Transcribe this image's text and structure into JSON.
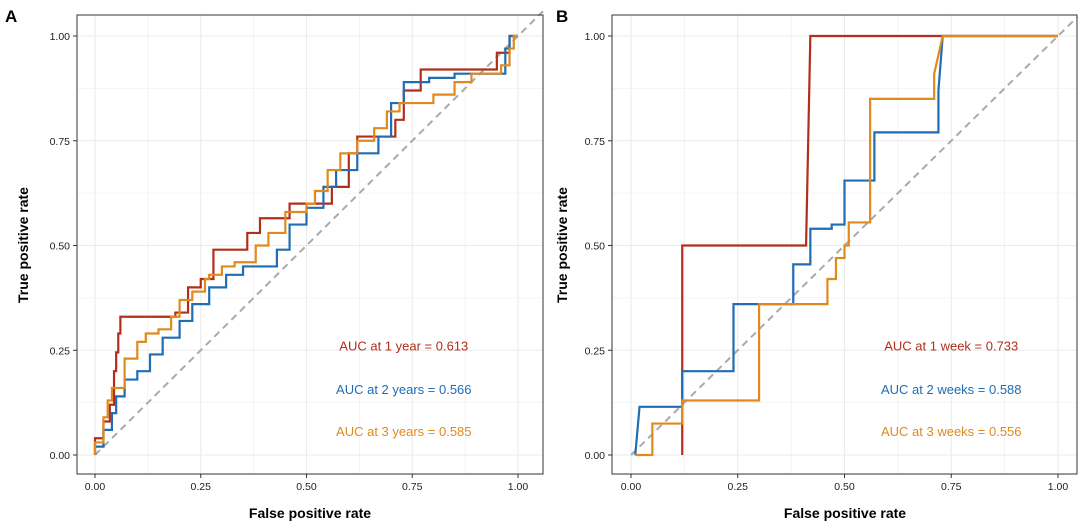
{
  "figure": {
    "colors": {
      "red": "#B22E1C",
      "blue": "#1F6DB3",
      "orange": "#E08A1E",
      "diagonal": "#AAAAAA",
      "grid": "#EBEBEB",
      "border": "#333333"
    }
  },
  "chart_data": [
    {
      "panel": "A",
      "type": "line",
      "xlabel": "False positive rate",
      "ylabel": "True positive rate",
      "xlim": [
        0,
        1
      ],
      "ylim": [
        0,
        1
      ],
      "xticks": [
        "0.00",
        "0.25",
        "0.50",
        "0.75",
        "1.00"
      ],
      "yticks": [
        "0.00",
        "0.25",
        "0.50",
        "0.75",
        "1.00"
      ],
      "grid": true,
      "reference_line": "diagonal",
      "series": [
        {
          "name": "AUC at 1 year = 0.613",
          "color": "#B22E1C",
          "points": [
            [
              0,
              0
            ],
            [
              0,
              0.04
            ],
            [
              0.02,
              0.04
            ],
            [
              0.02,
              0.08
            ],
            [
              0.035,
              0.08
            ],
            [
              0.035,
              0.12
            ],
            [
              0.045,
              0.12
            ],
            [
              0.045,
              0.2
            ],
            [
              0.05,
              0.2
            ],
            [
              0.05,
              0.245
            ],
            [
              0.055,
              0.245
            ],
            [
              0.055,
              0.29
            ],
            [
              0.06,
              0.29
            ],
            [
              0.06,
              0.33
            ],
            [
              0.19,
              0.33
            ],
            [
              0.19,
              0.34
            ],
            [
              0.22,
              0.34
            ],
            [
              0.22,
              0.4
            ],
            [
              0.25,
              0.4
            ],
            [
              0.25,
              0.42
            ],
            [
              0.28,
              0.42
            ],
            [
              0.28,
              0.49
            ],
            [
              0.36,
              0.49
            ],
            [
              0.36,
              0.53
            ],
            [
              0.39,
              0.53
            ],
            [
              0.39,
              0.565
            ],
            [
              0.46,
              0.565
            ],
            [
              0.46,
              0.6
            ],
            [
              0.56,
              0.6
            ],
            [
              0.56,
              0.64
            ],
            [
              0.6,
              0.64
            ],
            [
              0.6,
              0.72
            ],
            [
              0.62,
              0.72
            ],
            [
              0.62,
              0.76
            ],
            [
              0.71,
              0.76
            ],
            [
              0.71,
              0.8
            ],
            [
              0.73,
              0.8
            ],
            [
              0.73,
              0.87
            ],
            [
              0.77,
              0.87
            ],
            [
              0.77,
              0.92
            ],
            [
              0.95,
              0.92
            ],
            [
              0.95,
              0.96
            ],
            [
              0.98,
              0.96
            ],
            [
              0.98,
              1
            ],
            [
              1,
              1
            ]
          ]
        },
        {
          "name": "AUC at 2 years = 0.566",
          "color": "#1F6DB3",
          "points": [
            [
              0,
              0
            ],
            [
              0,
              0.02
            ],
            [
              0.02,
              0.02
            ],
            [
              0.02,
              0.06
            ],
            [
              0.04,
              0.06
            ],
            [
              0.04,
              0.1
            ],
            [
              0.05,
              0.1
            ],
            [
              0.05,
              0.14
            ],
            [
              0.07,
              0.14
            ],
            [
              0.07,
              0.18
            ],
            [
              0.1,
              0.18
            ],
            [
              0.1,
              0.2
            ],
            [
              0.13,
              0.2
            ],
            [
              0.13,
              0.24
            ],
            [
              0.16,
              0.24
            ],
            [
              0.16,
              0.28
            ],
            [
              0.2,
              0.28
            ],
            [
              0.2,
              0.32
            ],
            [
              0.23,
              0.32
            ],
            [
              0.23,
              0.36
            ],
            [
              0.27,
              0.36
            ],
            [
              0.27,
              0.4
            ],
            [
              0.31,
              0.4
            ],
            [
              0.31,
              0.43
            ],
            [
              0.35,
              0.43
            ],
            [
              0.35,
              0.45
            ],
            [
              0.43,
              0.45
            ],
            [
              0.43,
              0.49
            ],
            [
              0.46,
              0.49
            ],
            [
              0.46,
              0.55
            ],
            [
              0.5,
              0.55
            ],
            [
              0.5,
              0.59
            ],
            [
              0.54,
              0.59
            ],
            [
              0.54,
              0.64
            ],
            [
              0.57,
              0.64
            ],
            [
              0.57,
              0.68
            ],
            [
              0.62,
              0.68
            ],
            [
              0.62,
              0.72
            ],
            [
              0.67,
              0.72
            ],
            [
              0.67,
              0.76
            ],
            [
              0.7,
              0.76
            ],
            [
              0.7,
              0.84
            ],
            [
              0.73,
              0.84
            ],
            [
              0.73,
              0.89
            ],
            [
              0.79,
              0.89
            ],
            [
              0.79,
              0.9
            ],
            [
              0.85,
              0.9
            ],
            [
              0.85,
              0.91
            ],
            [
              0.97,
              0.91
            ],
            [
              0.97,
              0.97
            ],
            [
              0.98,
              0.97
            ],
            [
              0.98,
              1
            ],
            [
              1,
              1
            ]
          ]
        },
        {
          "name": "AUC at 3 years = 0.585",
          "color": "#E08A1E",
          "points": [
            [
              0,
              0
            ],
            [
              0,
              0.03
            ],
            [
              0.02,
              0.03
            ],
            [
              0.02,
              0.09
            ],
            [
              0.03,
              0.09
            ],
            [
              0.03,
              0.13
            ],
            [
              0.04,
              0.13
            ],
            [
              0.04,
              0.16
            ],
            [
              0.07,
              0.16
            ],
            [
              0.07,
              0.23
            ],
            [
              0.1,
              0.23
            ],
            [
              0.1,
              0.27
            ],
            [
              0.12,
              0.27
            ],
            [
              0.12,
              0.29
            ],
            [
              0.15,
              0.29
            ],
            [
              0.15,
              0.3
            ],
            [
              0.18,
              0.3
            ],
            [
              0.18,
              0.33
            ],
            [
              0.2,
              0.33
            ],
            [
              0.2,
              0.37
            ],
            [
              0.23,
              0.37
            ],
            [
              0.23,
              0.39
            ],
            [
              0.26,
              0.39
            ],
            [
              0.26,
              0.42
            ],
            [
              0.27,
              0.42
            ],
            [
              0.27,
              0.43
            ],
            [
              0.3,
              0.43
            ],
            [
              0.3,
              0.45
            ],
            [
              0.33,
              0.45
            ],
            [
              0.33,
              0.46
            ],
            [
              0.38,
              0.46
            ],
            [
              0.38,
              0.5
            ],
            [
              0.41,
              0.5
            ],
            [
              0.41,
              0.53
            ],
            [
              0.45,
              0.53
            ],
            [
              0.45,
              0.58
            ],
            [
              0.5,
              0.58
            ],
            [
              0.5,
              0.6
            ],
            [
              0.52,
              0.6
            ],
            [
              0.52,
              0.63
            ],
            [
              0.55,
              0.63
            ],
            [
              0.55,
              0.68
            ],
            [
              0.58,
              0.68
            ],
            [
              0.58,
              0.72
            ],
            [
              0.62,
              0.72
            ],
            [
              0.62,
              0.75
            ],
            [
              0.66,
              0.75
            ],
            [
              0.66,
              0.78
            ],
            [
              0.69,
              0.78
            ],
            [
              0.69,
              0.82
            ],
            [
              0.72,
              0.82
            ],
            [
              0.72,
              0.84
            ],
            [
              0.8,
              0.84
            ],
            [
              0.8,
              0.86
            ],
            [
              0.85,
              0.86
            ],
            [
              0.85,
              0.89
            ],
            [
              0.89,
              0.89
            ],
            [
              0.89,
              0.91
            ],
            [
              0.96,
              0.91
            ],
            [
              0.96,
              0.93
            ],
            [
              0.98,
              0.93
            ],
            [
              0.98,
              0.97
            ],
            [
              0.99,
              0.97
            ],
            [
              0.99,
              1
            ],
            [
              1,
              1
            ]
          ]
        }
      ],
      "annotations": [
        {
          "text": "AUC at 1 year = 0.613",
          "color": "#B22E1C",
          "x": 0.73,
          "y": 0.25
        },
        {
          "text": "AUC at 2 years = 0.566",
          "color": "#1F6DB3",
          "x": 0.73,
          "y": 0.145
        },
        {
          "text": "AUC at 3 years = 0.585",
          "color": "#E08A1E",
          "x": 0.73,
          "y": 0.045
        }
      ]
    },
    {
      "panel": "B",
      "type": "line",
      "xlabel": "False positive rate",
      "ylabel": "True positive rate",
      "xlim": [
        0,
        1
      ],
      "ylim": [
        0,
        1
      ],
      "xticks": [
        "0.00",
        "0.25",
        "0.50",
        "0.75",
        "1.00"
      ],
      "yticks": [
        "0.00",
        "0.25",
        "0.50",
        "0.75",
        "1.00"
      ],
      "grid": true,
      "reference_line": "diagonal",
      "series": [
        {
          "name": "AUC at 1 week = 0.733",
          "color": "#B22E1C",
          "points": [
            [
              0.12,
              0
            ],
            [
              0.12,
              0.5
            ],
            [
              0.41,
              0.5
            ],
            [
              0.42,
              1
            ],
            [
              1,
              1
            ]
          ]
        },
        {
          "name": "AUC at 2 weeks = 0.588",
          "color": "#1F6DB3",
          "points": [
            [
              0.01,
              0
            ],
            [
              0.02,
              0.115
            ],
            [
              0.12,
              0.115
            ],
            [
              0.12,
              0.2
            ],
            [
              0.24,
              0.2
            ],
            [
              0.24,
              0.36
            ],
            [
              0.38,
              0.36
            ],
            [
              0.38,
              0.455
            ],
            [
              0.42,
              0.455
            ],
            [
              0.42,
              0.54
            ],
            [
              0.47,
              0.54
            ],
            [
              0.47,
              0.55
            ],
            [
              0.5,
              0.55
            ],
            [
              0.5,
              0.655
            ],
            [
              0.57,
              0.655
            ],
            [
              0.57,
              0.77
            ],
            [
              0.72,
              0.77
            ],
            [
              0.72,
              0.87
            ],
            [
              0.73,
              1
            ],
            [
              1,
              1
            ]
          ]
        },
        {
          "name": "AUC at 3 weeks = 0.556",
          "color": "#E08A1E",
          "points": [
            [
              0.01,
              0
            ],
            [
              0.05,
              0
            ],
            [
              0.05,
              0.075
            ],
            [
              0.12,
              0.075
            ],
            [
              0.12,
              0.13
            ],
            [
              0.3,
              0.13
            ],
            [
              0.3,
              0.36
            ],
            [
              0.46,
              0.36
            ],
            [
              0.46,
              0.42
            ],
            [
              0.48,
              0.42
            ],
            [
              0.48,
              0.47
            ],
            [
              0.5,
              0.47
            ],
            [
              0.5,
              0.5
            ],
            [
              0.51,
              0.5
            ],
            [
              0.51,
              0.555
            ],
            [
              0.56,
              0.555
            ],
            [
              0.56,
              0.85
            ],
            [
              0.71,
              0.85
            ],
            [
              0.71,
              0.91
            ],
            [
              0.73,
              1
            ],
            [
              1,
              1
            ]
          ]
        }
      ],
      "annotations": [
        {
          "text": "AUC at 1 week = 0.733",
          "color": "#B22E1C",
          "x": 0.75,
          "y": 0.25
        },
        {
          "text": "AUC at 2 weeks = 0.588",
          "color": "#1F6DB3",
          "x": 0.75,
          "y": 0.145
        },
        {
          "text": "AUC at 3 weeks = 0.556",
          "color": "#E08A1E",
          "x": 0.75,
          "y": 0.045
        }
      ]
    }
  ]
}
